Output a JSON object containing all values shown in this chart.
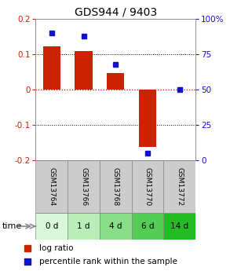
{
  "title": "GDS944 / 9403",
  "samples": [
    "GSM13764",
    "GSM13766",
    "GSM13768",
    "GSM13770",
    "GSM13772"
  ],
  "time_labels": [
    "0 d",
    "1 d",
    "4 d",
    "6 d",
    "14 d"
  ],
  "log_ratio": [
    0.122,
    0.108,
    0.047,
    -0.163,
    0.0
  ],
  "percentile_rank": [
    90,
    88,
    68,
    5,
    50
  ],
  "ylim": [
    -0.2,
    0.2
  ],
  "right_ylim": [
    0,
    100
  ],
  "bar_color": "#cc2200",
  "dot_color": "#1111cc",
  "zero_line_color": "#cc0000",
  "title_fontsize": 10,
  "tick_color_left": "#cc2200",
  "tick_color_right": "#1111cc",
  "green_colors": [
    "#d9f7d9",
    "#b8efb8",
    "#88dd88",
    "#55cc55",
    "#22bb22"
  ],
  "gray_color": "#cccccc",
  "legend_bar_color": "#cc2200",
  "legend_dot_color": "#1111cc"
}
